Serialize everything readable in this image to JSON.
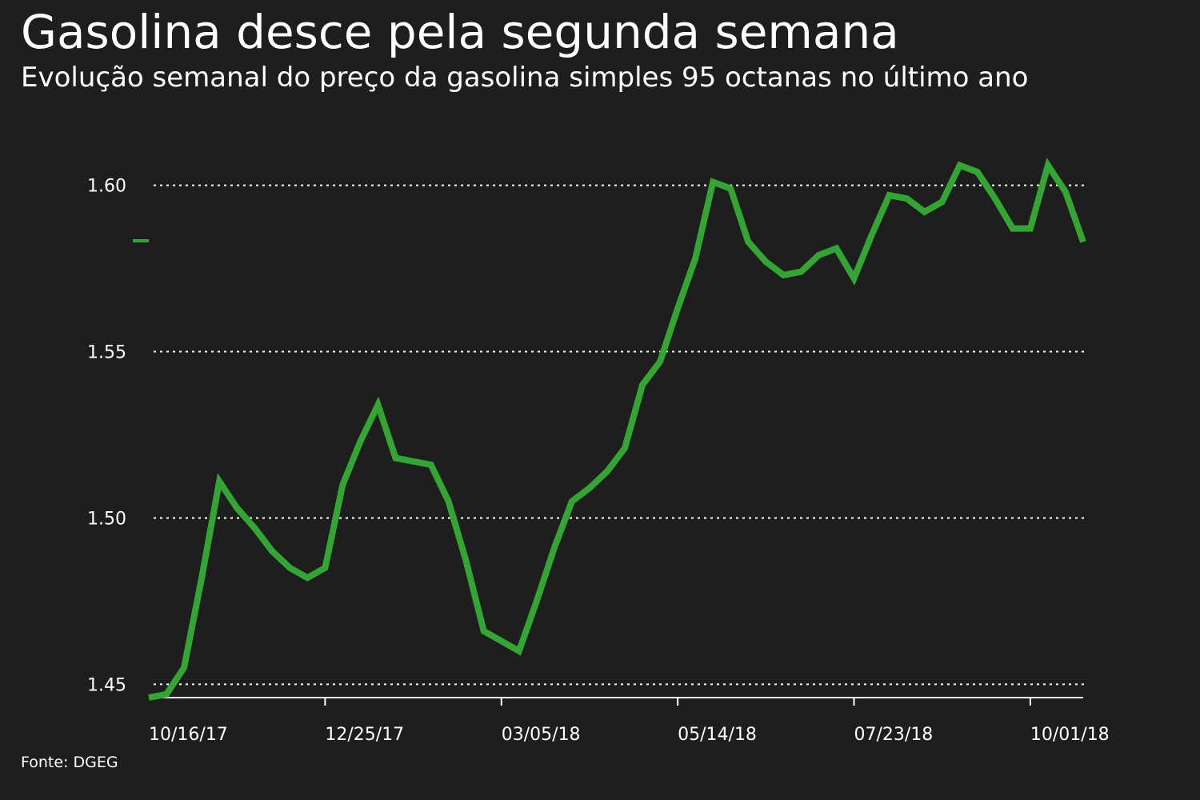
{
  "chart_data": {
    "type": "line",
    "title": "Gasolina desce pela segunda semana",
    "subtitle": "Evolução semanal do preço da gasolina simples 95 octanas no último ano",
    "source": "Fonte: DGEG",
    "x": [
      "10/16/17",
      "10/23/17",
      "10/30/17",
      "11/06/17",
      "11/13/17",
      "11/20/17",
      "11/27/17",
      "12/04/17",
      "12/11/17",
      "12/18/17",
      "12/25/17",
      "01/01/18",
      "01/08/18",
      "01/15/18",
      "01/22/18",
      "01/29/18",
      "02/05/18",
      "02/12/18",
      "02/19/18",
      "02/26/18",
      "03/05/18",
      "03/12/18",
      "03/19/18",
      "03/26/18",
      "04/02/18",
      "04/09/18",
      "04/16/18",
      "04/23/18",
      "04/30/18",
      "05/07/18",
      "05/14/18",
      "05/21/18",
      "05/28/18",
      "06/04/18",
      "06/11/18",
      "06/18/18",
      "06/25/18",
      "07/02/18",
      "07/09/18",
      "07/16/18",
      "07/23/18",
      "07/30/18",
      "08/06/18",
      "08/13/18",
      "08/20/18",
      "08/27/18",
      "09/03/18",
      "09/10/18",
      "09/17/18",
      "09/24/18",
      "10/01/18",
      "10/08/18",
      "10/15/18",
      "10/22/18"
    ],
    "series": [
      {
        "name": "Gasolina simples 95",
        "color": "#33a532",
        "values": [
          1.446,
          1.447,
          1.455,
          1.482,
          1.511,
          1.503,
          1.497,
          1.49,
          1.485,
          1.482,
          1.485,
          1.51,
          1.523,
          1.534,
          1.518,
          1.517,
          1.516,
          1.505,
          1.487,
          1.466,
          1.463,
          1.46,
          1.475,
          1.491,
          1.505,
          1.509,
          1.514,
          1.521,
          1.54,
          1.547,
          1.563,
          1.578,
          1.601,
          1.599,
          1.583,
          1.577,
          1.573,
          1.574,
          1.579,
          1.581,
          1.572,
          1.585,
          1.597,
          1.596,
          1.592,
          1.595,
          1.606,
          1.604,
          1.596,
          1.587,
          1.587,
          1.606,
          1.598,
          1.583
        ]
      }
    ],
    "xlim": [
      "10/16/17",
      "10/22/18"
    ],
    "xticks": [
      "10/16/17",
      "12/25/17",
      "03/05/18",
      "05/14/18",
      "07/23/18",
      "10/01/18"
    ],
    "ylim": [
      1.446,
      1.61
    ],
    "yticks": [
      1.45,
      {
        "value": 1.5,
        "label": "1.50"
      },
      1.55,
      {
        "value": 1.6,
        "label": "1.60"
      }
    ],
    "grid": true
  }
}
